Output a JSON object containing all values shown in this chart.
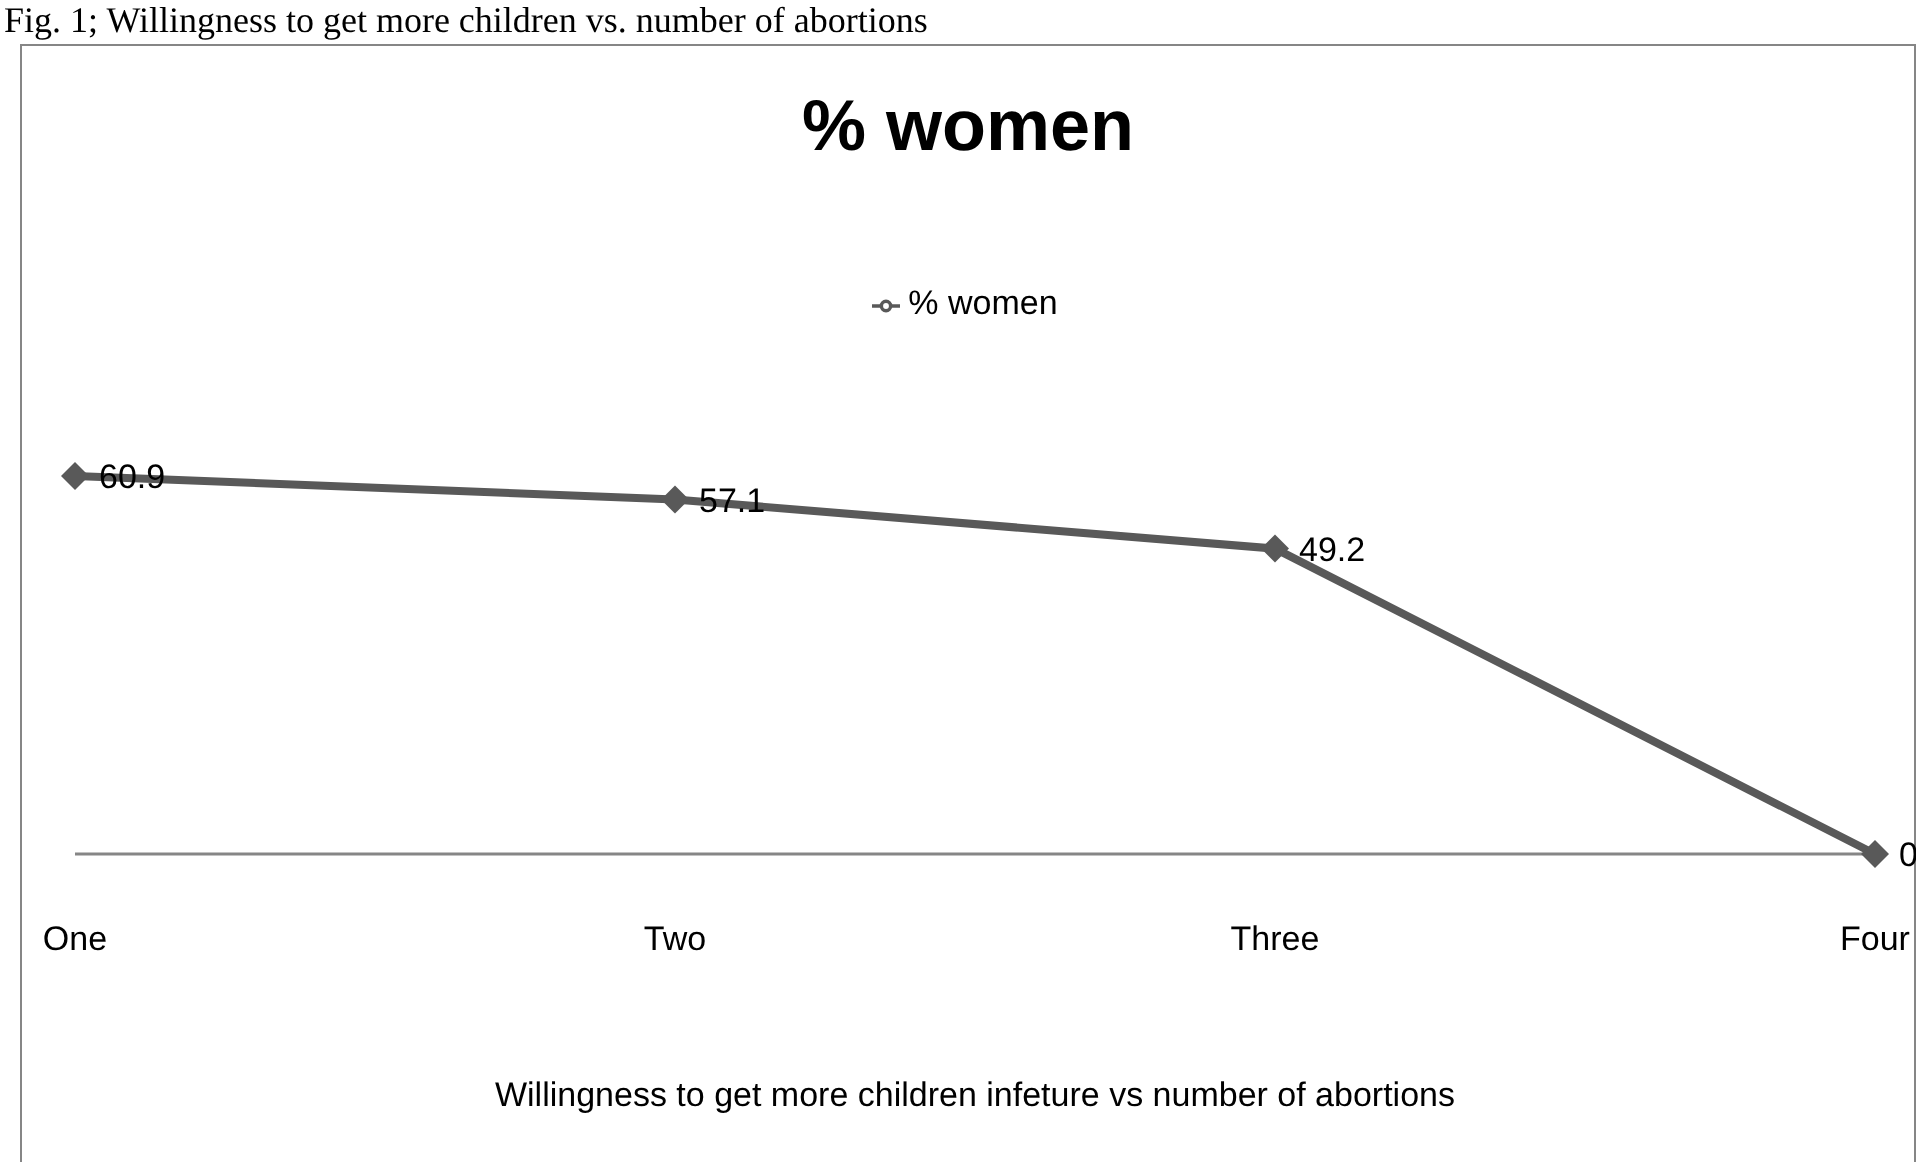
{
  "chart_data": {
    "type": "line",
    "title": "% women",
    "annotations": [
      "Fig. 1; Willingness to get more children vs. number of abortions"
    ],
    "categories": [
      "One",
      "Two",
      "Three",
      "Four"
    ],
    "series": [
      {
        "name": "% women",
        "color": "#595959",
        "values": [
          60.9,
          57.1,
          49.2,
          0
        ]
      }
    ],
    "xlabel": "Willingness to get more children infeture vs number of abortions",
    "data_labels": true,
    "marker": "diamond",
    "legend": "top",
    "grid": false
  }
}
